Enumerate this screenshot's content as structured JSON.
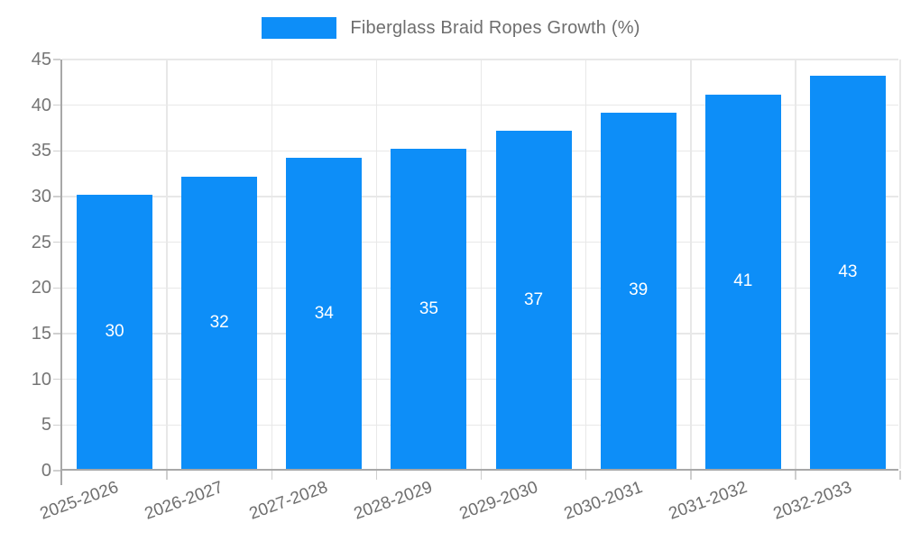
{
  "legend": {
    "label": "Fiberglass Braid Ropes Growth (%)",
    "swatch_color": "#0d8ef8"
  },
  "colors": {
    "bar": "#0d8ef8",
    "value_label": "#ffffff",
    "axis_text": "#757575",
    "x_axis_text": "#6e6e6e",
    "grid_line": "#e8e8e8",
    "axis_line": "#a8a8a8",
    "background": "#ffffff"
  },
  "chart_data": {
    "type": "bar",
    "title": "Fiberglass Braid Ropes Growth (%)",
    "categories": [
      "2025-2026",
      "2026-2027",
      "2027-2028",
      "2028-2029",
      "2029-2030",
      "2030-2031",
      "2031-2032",
      "2032-2033"
    ],
    "values": [
      30,
      32,
      34,
      35,
      37,
      39,
      41,
      43
    ],
    "series": [
      {
        "name": "Fiberglass Braid Ropes Growth (%)",
        "values": [
          30,
          32,
          34,
          35,
          37,
          39,
          41,
          43
        ]
      }
    ],
    "xlabel": "",
    "ylabel": "",
    "ylim": [
      0,
      45
    ],
    "y_ticks": [
      0,
      5,
      10,
      15,
      20,
      25,
      30,
      35,
      40,
      45
    ],
    "grid": "horizontal and vertical light gridlines",
    "legend_position": "top-center",
    "value_labels": "inside bars, white, vertically centered",
    "x_tick_rotation_deg": -20
  }
}
